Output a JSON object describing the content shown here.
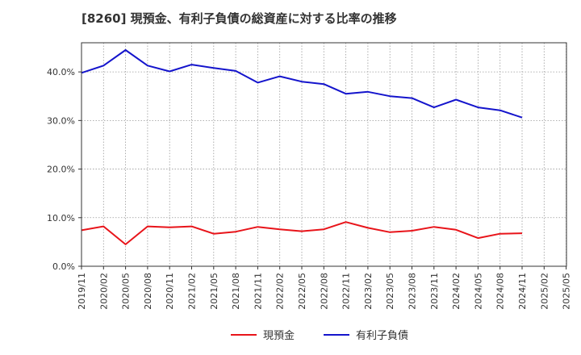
{
  "chart_data": {
    "type": "line",
    "title": "[8260]  現預金、有利子負債の総資産に対する比率の推移",
    "xlabel": "",
    "ylabel": "",
    "ylim": [
      0,
      0.46
    ],
    "yticks": [
      0,
      0.1,
      0.2,
      0.3,
      0.4
    ],
    "ytick_labels": [
      "0.0%",
      "10.0%",
      "20.0%",
      "30.0%",
      "40.0%"
    ],
    "categories": [
      "2019/11",
      "2020/02",
      "2020/05",
      "2020/08",
      "2020/11",
      "2021/02",
      "2021/05",
      "2021/08",
      "2021/11",
      "2022/02",
      "2022/05",
      "2022/08",
      "2022/11",
      "2023/02",
      "2023/05",
      "2023/08",
      "2023/11",
      "2024/02",
      "2024/05",
      "2024/08",
      "2024/11",
      "2025/02",
      "2025/05"
    ],
    "grid": true,
    "legend_position": "bottom",
    "series": [
      {
        "name": "現預金",
        "color": "#e8141a",
        "values": [
          0.074,
          0.082,
          0.045,
          0.082,
          0.08,
          0.082,
          0.067,
          0.071,
          0.081,
          0.076,
          0.072,
          0.076,
          0.091,
          0.079,
          0.07,
          0.073,
          0.081,
          0.075,
          0.058,
          0.067,
          0.068,
          null,
          null
        ]
      },
      {
        "name": "有利子負債",
        "color": "#1414cc",
        "values": [
          0.398,
          0.413,
          0.445,
          0.413,
          0.401,
          0.415,
          0.408,
          0.402,
          0.378,
          0.391,
          0.38,
          0.375,
          0.355,
          0.359,
          0.35,
          0.346,
          0.327,
          0.343,
          0.327,
          0.321,
          0.306,
          null,
          null
        ]
      }
    ]
  }
}
